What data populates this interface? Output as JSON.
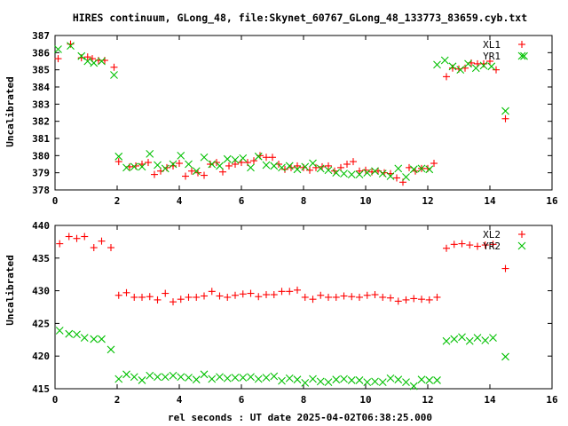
{
  "title": "HIRES continuum, GLong_48, file:Skynet_60767_GLong_48_133773_83659.cyb.txt",
  "colors": {
    "XL": "#ff0000",
    "YR": "#00c000",
    "axis": "#000000"
  },
  "chart_data": [
    {
      "type": "scatter",
      "ylabel": "Uncalibrated",
      "xlabel": "",
      "xlim": [
        0,
        16
      ],
      "ylim": [
        378,
        387
      ],
      "xticks": [
        "0",
        "2",
        "4",
        "6",
        "8",
        "10",
        "12",
        "14",
        "16"
      ],
      "yticks": [
        "378",
        "379",
        "380",
        "381",
        "382",
        "383",
        "384",
        "385",
        "386",
        "387"
      ],
      "legend_position": "top-right",
      "series": [
        {
          "name": "XL1",
          "marker": "plus",
          "color": "#ff0000",
          "x": [
            0.1,
            0.5,
            0.85,
            1.05,
            1.2,
            1.4,
            1.6,
            1.9,
            2.05,
            2.4,
            2.6,
            2.8,
            3.0,
            3.2,
            3.4,
            3.6,
            3.8,
            4.0,
            4.2,
            4.4,
            4.6,
            4.8,
            5.0,
            5.2,
            5.4,
            5.6,
            5.8,
            6.0,
            6.2,
            6.4,
            6.6,
            6.8,
            7.0,
            7.2,
            7.4,
            7.6,
            7.8,
            8.0,
            8.2,
            8.4,
            8.6,
            8.8,
            9.0,
            9.2,
            9.4,
            9.6,
            9.8,
            10.0,
            10.2,
            10.4,
            10.6,
            10.8,
            11.0,
            11.2,
            11.4,
            11.6,
            11.8,
            12.0,
            12.2,
            12.6,
            12.8,
            13.0,
            13.2,
            13.4,
            13.6,
            13.8,
            14.0,
            14.2,
            14.5
          ],
          "y": [
            385.65,
            386.5,
            385.7,
            385.75,
            385.65,
            385.55,
            385.55,
            385.15,
            379.65,
            379.35,
            379.4,
            379.5,
            379.6,
            378.9,
            379.1,
            379.3,
            379.4,
            379.55,
            378.8,
            379.1,
            379.0,
            378.85,
            379.5,
            379.6,
            379.05,
            379.4,
            379.5,
            379.6,
            379.6,
            379.7,
            380.0,
            379.9,
            379.9,
            379.5,
            379.2,
            379.3,
            379.4,
            379.3,
            379.15,
            379.3,
            379.35,
            379.4,
            379.1,
            379.3,
            379.5,
            379.65,
            379.1,
            379.15,
            379.05,
            379.1,
            379.0,
            378.95,
            378.7,
            378.45,
            379.3,
            379.1,
            379.25,
            379.25,
            379.55,
            384.6,
            385.1,
            385.05,
            385.1,
            385.4,
            385.35,
            385.35,
            385.5,
            385.0,
            382.15
          ]
        },
        {
          "name": "YR1",
          "marker": "cross",
          "color": "#00c000",
          "x": [
            0.1,
            0.5,
            0.85,
            1.05,
            1.25,
            1.5,
            1.9,
            2.05,
            2.3,
            2.55,
            2.8,
            3.05,
            3.3,
            3.55,
            3.8,
            4.05,
            4.3,
            4.55,
            4.8,
            5.05,
            5.3,
            5.55,
            5.8,
            6.05,
            6.3,
            6.55,
            6.8,
            7.05,
            7.3,
            7.55,
            7.8,
            8.05,
            8.3,
            8.55,
            8.8,
            9.05,
            9.3,
            9.55,
            9.8,
            10.05,
            10.3,
            10.55,
            10.8,
            11.05,
            11.3,
            11.55,
            11.8,
            12.05,
            12.3,
            12.55,
            12.8,
            13.05,
            13.3,
            13.55,
            13.8,
            14.05,
            14.5,
            15.1
          ],
          "y": [
            386.2,
            386.4,
            385.8,
            385.5,
            385.4,
            385.5,
            384.7,
            379.95,
            379.3,
            379.35,
            379.35,
            380.1,
            379.45,
            379.25,
            379.5,
            380.0,
            379.5,
            379.1,
            379.9,
            379.5,
            379.4,
            379.8,
            379.75,
            379.85,
            379.3,
            379.95,
            379.45,
            379.4,
            379.3,
            379.4,
            379.2,
            379.35,
            379.55,
            379.25,
            379.15,
            379.0,
            378.95,
            378.9,
            378.9,
            379.0,
            379.1,
            378.95,
            378.8,
            379.25,
            378.75,
            379.2,
            379.25,
            379.2,
            385.3,
            385.55,
            385.2,
            385.0,
            385.35,
            385.1,
            385.25,
            385.2,
            382.6,
            385.8
          ]
        }
      ]
    },
    {
      "type": "scatter",
      "ylabel": "Uncalibrated",
      "xlabel": "rel seconds : UT date 2025-04-02T06:38:25.000",
      "xlim": [
        0,
        16
      ],
      "ylim": [
        415,
        440
      ],
      "xticks": [
        "0",
        "2",
        "4",
        "6",
        "8",
        "10",
        "12",
        "14",
        "16"
      ],
      "yticks": [
        "415",
        "420",
        "425",
        "430",
        "435",
        "440"
      ],
      "legend_position": "top-right",
      "series": [
        {
          "name": "XL2",
          "marker": "plus",
          "color": "#ff0000",
          "x": [
            0.15,
            0.45,
            0.7,
            0.95,
            1.25,
            1.5,
            1.8,
            2.05,
            2.3,
            2.55,
            2.8,
            3.05,
            3.3,
            3.55,
            3.8,
            4.05,
            4.3,
            4.55,
            4.8,
            5.05,
            5.3,
            5.55,
            5.8,
            6.05,
            6.3,
            6.55,
            6.8,
            7.05,
            7.3,
            7.55,
            7.8,
            8.05,
            8.3,
            8.55,
            8.8,
            9.05,
            9.3,
            9.55,
            9.8,
            10.05,
            10.3,
            10.55,
            10.8,
            11.05,
            11.3,
            11.55,
            11.8,
            12.05,
            12.3,
            12.6,
            12.85,
            13.1,
            13.35,
            13.6,
            13.85,
            14.1,
            14.5
          ],
          "y": [
            437.2,
            438.3,
            438.0,
            438.3,
            436.6,
            437.6,
            436.6,
            429.3,
            429.7,
            429.0,
            429.0,
            429.1,
            428.6,
            429.6,
            428.3,
            428.7,
            429.0,
            429.0,
            429.2,
            429.9,
            429.2,
            429.0,
            429.3,
            429.5,
            429.6,
            429.1,
            429.4,
            429.4,
            429.9,
            429.9,
            430.1,
            429.0,
            428.7,
            429.3,
            429.0,
            429.0,
            429.2,
            429.1,
            429.0,
            429.3,
            429.4,
            429.0,
            428.9,
            428.4,
            428.6,
            428.8,
            428.7,
            428.6,
            429.0,
            436.5,
            437.1,
            437.2,
            437.0,
            436.8,
            437.0,
            437.1,
            433.4
          ]
        },
        {
          "name": "YR2",
          "marker": "cross",
          "color": "#00c000",
          "x": [
            0.15,
            0.45,
            0.7,
            0.95,
            1.25,
            1.5,
            1.8,
            2.05,
            2.3,
            2.55,
            2.8,
            3.05,
            3.3,
            3.55,
            3.8,
            4.05,
            4.3,
            4.55,
            4.8,
            5.05,
            5.3,
            5.55,
            5.8,
            6.05,
            6.3,
            6.55,
            6.8,
            7.05,
            7.3,
            7.55,
            7.8,
            8.05,
            8.3,
            8.55,
            8.8,
            9.05,
            9.3,
            9.55,
            9.8,
            10.05,
            10.3,
            10.55,
            10.8,
            11.05,
            11.3,
            11.55,
            11.8,
            12.05,
            12.3,
            12.6,
            12.85,
            13.1,
            13.35,
            13.6,
            13.85,
            14.1,
            14.5
          ],
          "y": [
            423.9,
            423.4,
            423.3,
            422.8,
            422.6,
            422.6,
            421.0,
            416.5,
            417.2,
            416.8,
            416.3,
            417.0,
            416.8,
            416.8,
            417.0,
            416.8,
            416.7,
            416.4,
            417.2,
            416.5,
            416.8,
            416.6,
            416.7,
            416.7,
            416.8,
            416.5,
            416.7,
            416.9,
            416.2,
            416.6,
            416.4,
            415.9,
            416.5,
            416.1,
            416.0,
            416.4,
            416.5,
            416.3,
            416.3,
            416.0,
            416.1,
            416.0,
            416.6,
            416.4,
            416.0,
            415.4,
            416.4,
            416.3,
            416.3,
            422.3,
            422.6,
            422.9,
            422.3,
            422.8,
            422.4,
            422.8,
            419.9
          ]
        }
      ]
    }
  ]
}
